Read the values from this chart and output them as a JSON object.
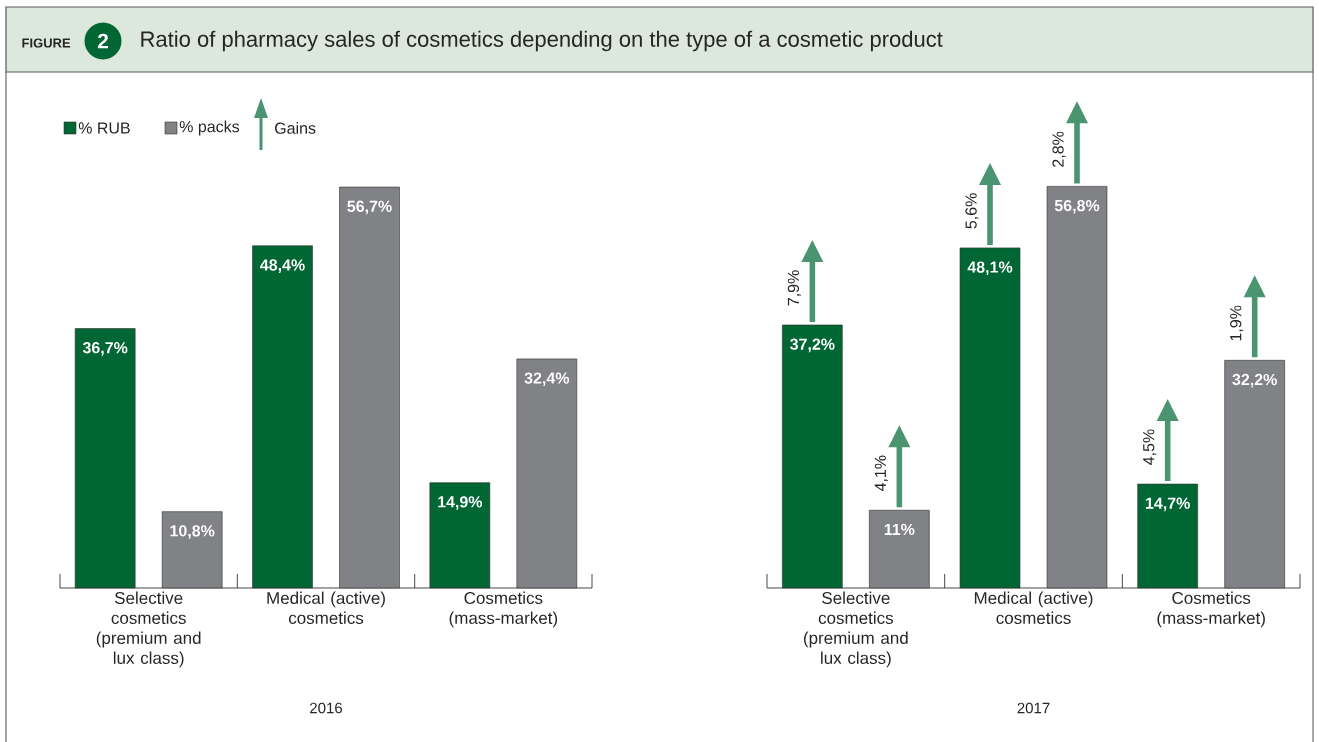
{
  "chart_data": [
    {
      "type": "bar",
      "title": "Ratio of pharmacy sales of cosmetics depending on the type of a cosmetic product",
      "xlabel": "2016",
      "categories": [
        "Selective cosmetics (premium and lux class)",
        "Medical (active) cosmetics",
        "Cosmetics (mass-market)"
      ],
      "series": [
        {
          "name": "% RUB",
          "color": "#006633",
          "values": [
            36.7,
            48.4,
            14.9
          ],
          "value_labels": [
            "36,7%",
            "48,4%",
            "14,9%"
          ]
        },
        {
          "name": "% packs",
          "color": "#808285",
          "values": [
            10.8,
            56.7,
            32.4
          ],
          "value_labels": [
            "10,8%",
            "56,7%",
            "32,4%"
          ]
        }
      ],
      "legend": "top left",
      "tick_labels": "x",
      "annotations": [
        "FIGURE",
        "2",
        "Gains"
      ]
    },
    {
      "type": "bar",
      "xlabel": "2017",
      "categories": [
        "Selective cosmetics (premium and lux class)",
        "Medical (active) cosmetics",
        "Cosmetics (mass-market)"
      ],
      "series": [
        {
          "color": "#006633",
          "values": [
            37.2,
            48.1,
            14.7
          ],
          "value_labels": [
            "37,2%",
            "48,1%",
            "14,7%"
          ]
        },
        {
          "color": "#808285",
          "values": [
            11,
            56.8,
            32.2
          ],
          "value_labels": [
            "11%",
            "56,8%",
            "32,2%"
          ]
        }
      ],
      "tick_labels": "x",
      "annotations": [
        "7,9%",
        "4,1%",
        "5,6%",
        "2,8%",
        "4,5%",
        "1,9%"
      ]
    }
  ]
}
